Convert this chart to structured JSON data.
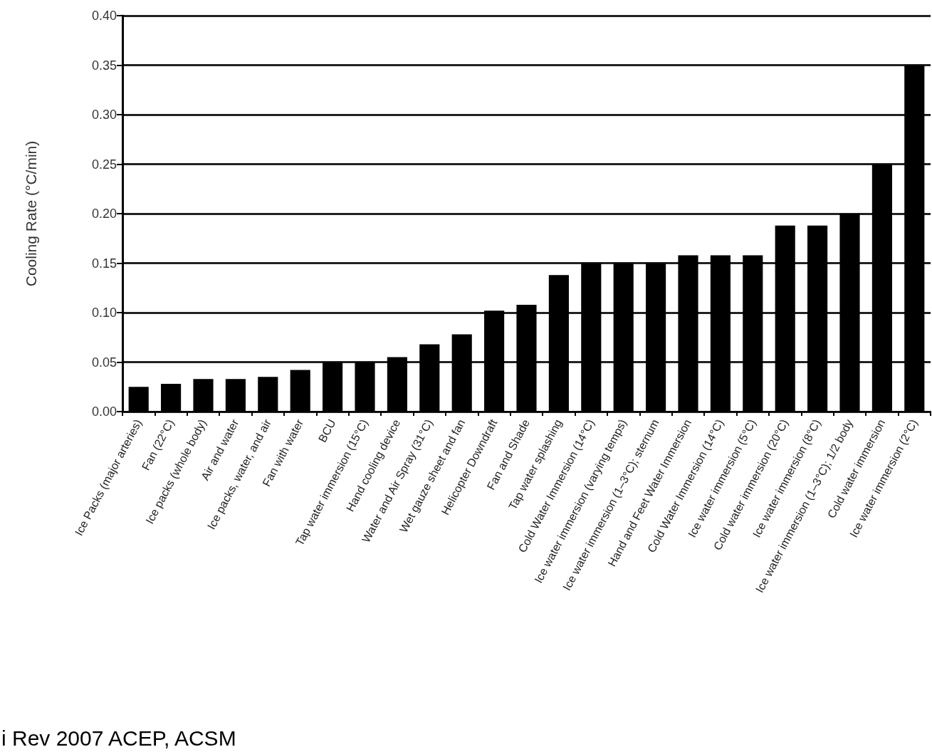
{
  "chart_data": {
    "type": "bar",
    "ylabel": "Cooling Rate (°C/min)",
    "categories": [
      "Ice Packs (major arteries)",
      "Fan (22°C)",
      "Ice packs (whole body)",
      "Air and water",
      "Ice packs, water, and air",
      "Fan with water",
      "BCU",
      "Tap water immersion (15°C)",
      "Hand cooling device",
      "Water and Air Spray (31°C)",
      "Wet gauze sheet and fan",
      "Helicopter Downdraft",
      "Fan and Shade",
      "Tap water splashing",
      "Cold Water Immersion (14°C)",
      "Ice water immersion (varying temps)",
      "Ice water immersion (1–3°C); sternum",
      "Hand and Feet Water Immersion",
      "Cold Water Immersion (14°C)",
      "Ice water immersion (5°C)",
      "Cold water immersion (20°C)",
      "Ice water immersion (8°C)",
      "Ice water immersion (1–3°C); 1/2 body",
      "Cold water immersion",
      "Ice water immersion (2°C)"
    ],
    "values": [
      0.025,
      0.028,
      0.033,
      0.033,
      0.035,
      0.042,
      0.05,
      0.05,
      0.055,
      0.068,
      0.078,
      0.102,
      0.108,
      0.138,
      0.15,
      0.15,
      0.15,
      0.158,
      0.158,
      0.158,
      0.188,
      0.188,
      0.2,
      0.25,
      0.35
    ],
    "color": "#000000",
    "ylim": [
      0,
      0.4
    ],
    "yticks": [
      {
        "value": 0,
        "label": "0.00"
      },
      {
        "value": 0.05,
        "label": "0.05"
      },
      {
        "value": 0.1,
        "label": "0.10"
      },
      {
        "value": 0.15,
        "label": "0.15"
      },
      {
        "value": 0.2,
        "label": "0.20"
      },
      {
        "value": 0.25,
        "label": "0.25"
      },
      {
        "value": 0.3,
        "label": "0.30"
      },
      {
        "value": 0.35,
        "label": "0.35"
      },
      {
        "value": 0.4,
        "label": "0.40"
      }
    ],
    "grid": "y",
    "annotations": [
      "i Rev 2007 ACEP, ACSM"
    ]
  }
}
